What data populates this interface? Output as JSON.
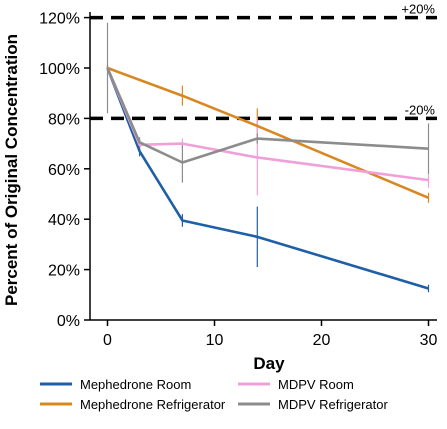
{
  "chart_data": {
    "type": "line",
    "xlabel": "Day",
    "ylabel": "Percent of Original Concentration",
    "xlim": [
      -2,
      31
    ],
    "ylim": [
      0,
      120
    ],
    "x_ticks": [
      0,
      10,
      20,
      30
    ],
    "y_ticks": [
      0,
      20,
      40,
      60,
      80,
      100,
      120
    ],
    "y_tick_labels": [
      "0%",
      "20%",
      "40%",
      "60%",
      "80%",
      "100%",
      "120%"
    ],
    "grid": false,
    "legend_position": "bottom",
    "reference_lines": [
      {
        "y": 120,
        "label": "+20%",
        "style": "dashed",
        "color": "#000000"
      },
      {
        "y": 80,
        "label": "-20%",
        "style": "dashed",
        "color": "#000000"
      }
    ],
    "series": [
      {
        "name": "Mephedrone Room",
        "color": "#1f5fa8",
        "x": [
          0,
          3,
          7,
          14,
          30
        ],
        "y": [
          100,
          67,
          39.5,
          33,
          12.5
        ],
        "error": [
          1,
          2,
          2.5,
          12,
          1.5
        ]
      },
      {
        "name": "Mephedrone Refrigerator",
        "color": "#d9871f",
        "x": [
          0,
          7,
          14,
          30
        ],
        "y": [
          100,
          89,
          77,
          48.5
        ],
        "error": [
          1,
          4,
          7,
          2
        ]
      },
      {
        "name": "MDPV Room",
        "color": "#f0a0d8",
        "x": [
          0,
          3,
          7,
          14,
          30
        ],
        "y": [
          100,
          69.5,
          70,
          64.5,
          55.5
        ],
        "error": [
          1,
          2,
          2,
          15,
          3
        ]
      },
      {
        "name": "MDPV Refrigerator",
        "color": "#8c8c8c",
        "x": [
          0,
          3,
          7,
          14,
          30
        ],
        "y": [
          100,
          70.5,
          62.5,
          72,
          68
        ],
        "error": [
          18,
          2,
          8,
          2,
          10
        ]
      }
    ]
  }
}
